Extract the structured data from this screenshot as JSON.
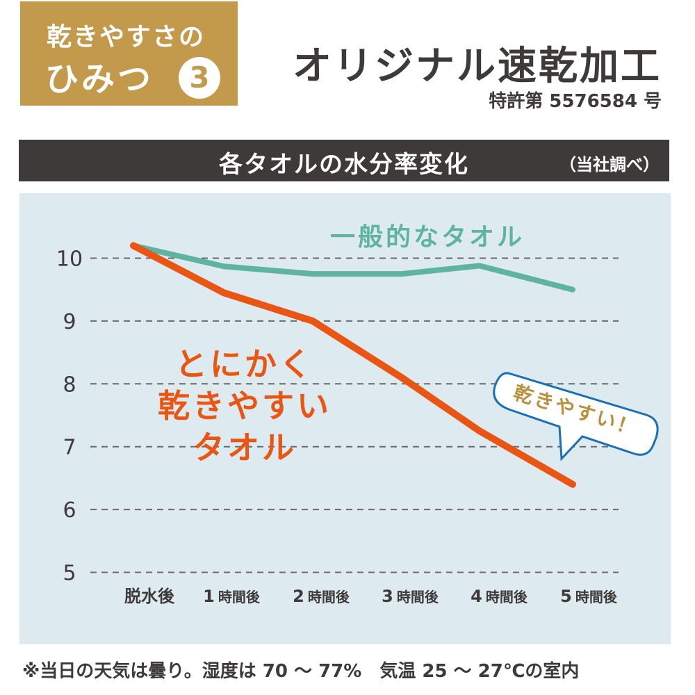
{
  "badge": {
    "line1": "乾きやすさの",
    "line2": "ひみつ",
    "number": "3"
  },
  "title": "オリジナル速乾加工",
  "patent": "特許第 5576584 号",
  "colors": {
    "gold": "#C39A4C",
    "dark": "#3E3A39",
    "plot_bg": "#DDEAF0",
    "general": "#5FB3A1",
    "quick": "#E95513",
    "bubble_border": "#1A6FB5"
  },
  "chart_data": {
    "type": "line",
    "title": "各タオルの水分率変化",
    "subtitle": "（当社調べ）",
    "categories": [
      "脱水後",
      "1時間後",
      "2時間後",
      "3時間後",
      "4時間後",
      "5時間後"
    ],
    "category_parts": [
      [
        "",
        "脱水後"
      ],
      [
        "1",
        "時間後"
      ],
      [
        "2",
        "時間後"
      ],
      [
        "3",
        "時間後"
      ],
      [
        "4",
        "時間後"
      ],
      [
        "5",
        "時間後"
      ]
    ],
    "yticks": [
      10,
      9,
      8,
      7,
      6,
      5
    ],
    "ylim": [
      5,
      10.3
    ],
    "grid": "horizontal dashed",
    "series": [
      {
        "name": "一般的なタオル",
        "color": "#5FB3A1",
        "values": [
          10.2,
          9.87,
          9.75,
          9.75,
          9.88,
          9.5
        ]
      },
      {
        "name": "とにかく乾きやすいタオル",
        "name_lines": [
          "とにかく",
          "乾きやすい",
          "タオル"
        ],
        "color": "#E95513",
        "values": [
          10.2,
          9.45,
          9.0,
          8.1,
          7.25,
          6.4
        ]
      }
    ],
    "annotation": "乾きやすい！"
  },
  "footnote": "※当日の天気は曇り。湿度は 70 〜 77%　気温 25 〜 27℃の室内"
}
